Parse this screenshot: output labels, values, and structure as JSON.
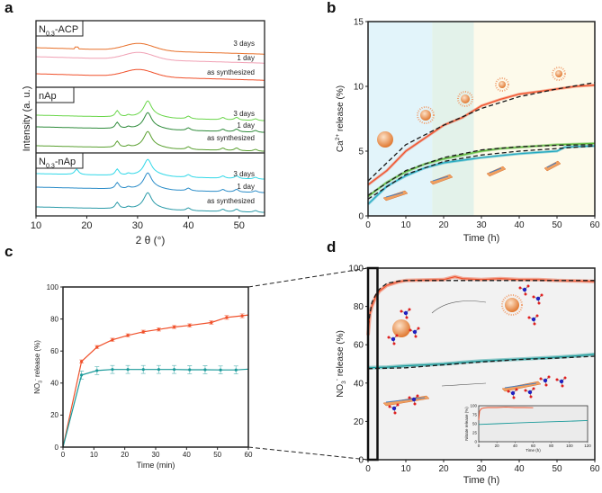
{
  "panels": [
    "a",
    "b",
    "c",
    "d"
  ],
  "chart_data": [
    {
      "panel": "a",
      "type": "line",
      "xlabel": "2 θ (°)",
      "ylabel": "Intensity (a. u.)",
      "xlim": [
        10,
        55
      ],
      "xticks": [
        "10",
        "20",
        "30",
        "40",
        "50"
      ],
      "xtick_values": [
        10,
        20,
        30,
        40,
        50
      ],
      "subpanels": [
        {
          "label": {
            "main": "N",
            "sub": "0.3",
            "rest": "-ACP"
          },
          "peaks_2theta": [
            30
          ],
          "series": [
            {
              "name": "3 days",
              "color": "#e8702a"
            },
            {
              "name": "1 day",
              "color": "#f0a0b4"
            },
            {
              "name": "as synthesized",
              "color": "#f0502a"
            }
          ]
        },
        {
          "label": {
            "main": "nAp",
            "sub": "",
            "rest": ""
          },
          "peaks_2theta": [
            26,
            28.2,
            32,
            40,
            46.8,
            49.5,
            53.2
          ],
          "series": [
            {
              "name": "3 days",
              "color": "#6ad64a"
            },
            {
              "name": "1 day",
              "color": "#2e8b3a"
            },
            {
              "name": "as synthesized",
              "color": "#5aa030"
            }
          ]
        },
        {
          "label": {
            "main": "N",
            "sub": "0.3",
            "rest": "-nAp"
          },
          "peaks_2theta": [
            18,
            26,
            28.2,
            32,
            40,
            46.8,
            49.5,
            53.2
          ],
          "series": [
            {
              "name": "3 days",
              "color": "#30d8e8"
            },
            {
              "name": "1 day",
              "color": "#2a8cc8"
            },
            {
              "name": "as synthesized",
              "color": "#2a9aa8"
            }
          ]
        }
      ]
    },
    {
      "panel": "b",
      "type": "line",
      "xlabel": "Time (h)",
      "ylabel": {
        "main": "Ca",
        "sup": "2+",
        "rest": " release (%)"
      },
      "xlim": [
        0,
        60
      ],
      "ylim": [
        0,
        15
      ],
      "xticks": [
        "0",
        "10",
        "20",
        "30",
        "40",
        "50",
        "60"
      ],
      "xtick_values": [
        0,
        10,
        20,
        30,
        40,
        50,
        60
      ],
      "yticks": [
        "0",
        "5",
        "10",
        "15"
      ],
      "ytick_values": [
        0,
        5,
        10,
        15
      ],
      "bands": [
        {
          "from": 0,
          "to": 17,
          "color": "#e2f4fa"
        },
        {
          "from": 17,
          "to": 28,
          "color": "#e3f2ea"
        },
        {
          "from": 28,
          "to": 60,
          "color": "#fdfaeb"
        }
      ],
      "series": [
        {
          "color": "#f0502a",
          "x": [
            0,
            5,
            10,
            15,
            20,
            25,
            30,
            35,
            40,
            45,
            50,
            55,
            60
          ],
          "y": [
            2.4,
            3.5,
            5.0,
            6.0,
            7.0,
            7.6,
            8.5,
            9.0,
            9.4,
            9.6,
            9.8,
            10.0,
            10.1
          ]
        },
        {
          "color": "#5cb83a",
          "x": [
            0,
            5,
            10,
            15,
            20,
            25,
            30,
            35,
            40,
            45,
            50,
            55,
            60
          ],
          "y": [
            1.5,
            2.6,
            3.4,
            4.0,
            4.4,
            4.7,
            5.0,
            5.2,
            5.3,
            5.4,
            5.5,
            5.55,
            5.6
          ]
        },
        {
          "color": "#22a8c0",
          "x": [
            0,
            5,
            10,
            15,
            20,
            25,
            30,
            35,
            40,
            45,
            50,
            52,
            55,
            60
          ],
          "y": [
            0.9,
            2.3,
            3.1,
            3.7,
            4.1,
            4.3,
            4.5,
            4.65,
            4.8,
            4.9,
            5.0,
            5.3,
            5.35,
            5.4
          ]
        }
      ],
      "fits": [
        {
          "x": [
            0,
            10,
            20,
            30,
            40,
            50,
            60
          ],
          "y": [
            2.7,
            5.5,
            7.0,
            8.3,
            9.2,
            9.8,
            10.3
          ]
        },
        {
          "x": [
            0,
            10,
            20,
            30,
            40,
            50,
            60
          ],
          "y": [
            1.6,
            3.5,
            4.5,
            5.1,
            5.35,
            5.45,
            5.5
          ]
        },
        {
          "x": [
            0,
            10,
            20,
            30,
            40,
            50,
            60
          ],
          "y": [
            1.3,
            3.2,
            4.2,
            4.7,
            5.0,
            5.2,
            5.4
          ]
        }
      ]
    },
    {
      "panel": "c",
      "type": "line",
      "xlabel": "Time (min)",
      "ylabel": {
        "main": "NO",
        "sub": "3",
        "sup": "-",
        "rest": " release (%)"
      },
      "xlim": [
        0,
        60
      ],
      "ylim": [
        0,
        100
      ],
      "xticks": [
        "0",
        "10",
        "20",
        "30",
        "40",
        "50",
        "60"
      ],
      "xtick_values": [
        0,
        10,
        20,
        30,
        40,
        50,
        60
      ],
      "yticks": [
        "0",
        "20",
        "40",
        "60",
        "80",
        "100"
      ],
      "ytick_values": [
        0,
        20,
        40,
        60,
        80,
        100
      ],
      "series": [
        {
          "color": "#f0502a",
          "x": [
            0,
            6,
            11,
            16,
            21,
            26,
            31,
            36,
            41,
            48,
            53,
            58
          ],
          "y": [
            0,
            53.5,
            62.5,
            67,
            69.8,
            72,
            73.5,
            75,
            76,
            77.8,
            81,
            82
          ],
          "err": [
            0,
            1,
            1,
            1,
            1,
            1,
            1,
            1,
            1,
            1.2,
            1.2,
            1.2
          ],
          "line_end": [
            60,
            82.5
          ]
        },
        {
          "color": "#1a9a9a",
          "x": [
            0,
            6,
            11,
            16,
            21,
            26,
            31,
            36,
            41,
            46,
            51,
            56
          ],
          "y": [
            0,
            45,
            47.8,
            48.5,
            48.5,
            48.5,
            48.5,
            48.5,
            48.3,
            48.3,
            48.2,
            48.2
          ],
          "err": [
            0,
            2.5,
            2.5,
            2.5,
            2.5,
            2.5,
            2.5,
            2.5,
            2.5,
            2.5,
            2.5,
            2.5
          ],
          "line_end": [
            60,
            48.7
          ]
        }
      ]
    },
    {
      "panel": "d",
      "type": "line",
      "xlabel": "Time (h)",
      "ylabel": {
        "main": "NO",
        "sub": "3",
        "sup": "-",
        "rest": " release (%)"
      },
      "xlim": [
        0,
        60
      ],
      "ylim": [
        0,
        100
      ],
      "xticks": [
        "0",
        "10",
        "20",
        "30",
        "40",
        "50",
        "60"
      ],
      "xtick_values": [
        0,
        10,
        20,
        30,
        40,
        50,
        60
      ],
      "yticks": [
        "0",
        "20",
        "40",
        "60",
        "80",
        "100"
      ],
      "ytick_values": [
        0,
        20,
        40,
        60,
        80,
        100
      ],
      "highlight_x": [
        0,
        2.5
      ],
      "background": "#f2f2f2",
      "series": [
        {
          "color": "#f0502a",
          "x": [
            0,
            0.5,
            1,
            2,
            3,
            5,
            8,
            10,
            15,
            20,
            23,
            25,
            30,
            35,
            40,
            45,
            50,
            55,
            60
          ],
          "y": [
            65,
            76,
            80,
            85,
            88,
            91,
            92.8,
            93.5,
            93.8,
            94,
            95.5,
            94.5,
            94,
            94.5,
            94,
            94,
            93.5,
            93.3,
            93
          ]
        },
        {
          "color": "#1a9a9a",
          "x": [
            0,
            5,
            10,
            15,
            20,
            25,
            30,
            35,
            40,
            45,
            50,
            55,
            60
          ],
          "y": [
            48,
            48.3,
            49,
            49.5,
            50,
            50.8,
            51.5,
            52,
            52.5,
            53,
            53.5,
            54.2,
            55
          ]
        }
      ],
      "fits": [
        {
          "x": [
            0,
            1,
            2,
            3,
            5,
            8,
            10,
            20,
            60
          ],
          "y": [
            70,
            82,
            86,
            89,
            92,
            93.2,
            93.5,
            93.5,
            93.5
          ]
        },
        {
          "x": [
            0,
            10,
            20,
            30,
            40,
            50,
            60
          ],
          "y": [
            47.5,
            48,
            49.5,
            51,
            52.3,
            53,
            54
          ]
        }
      ],
      "inset": {
        "xlabel": "Time (h)",
        "ylabel": "Nitrate release (%)",
        "xlim": [
          0,
          120
        ],
        "ylim": [
          0,
          100
        ],
        "xticks": [
          "0",
          "20",
          "40",
          "60",
          "80",
          "100",
          "120"
        ],
        "xtick_values": [
          0,
          20,
          40,
          60,
          80,
          100,
          120
        ],
        "yticks": [
          "0",
          "25",
          "50",
          "75",
          "100"
        ],
        "ytick_values": [
          0,
          25,
          50,
          75,
          100
        ],
        "series": [
          {
            "color": "#f0502a",
            "x": [
              0,
              1,
              3,
              6,
              10,
              20,
              30,
              40,
              50,
              60
            ],
            "y": [
              60,
              85,
              92,
              94,
              95,
              95,
              96,
              95,
              95,
              94.5
            ]
          },
          {
            "color": "#1a9a9a",
            "x": [
              0,
              20,
              40,
              60,
              80,
              100,
              120
            ],
            "y": [
              48,
              50,
              52,
              54,
              55.5,
              57,
              59
            ]
          }
        ]
      }
    }
  ]
}
